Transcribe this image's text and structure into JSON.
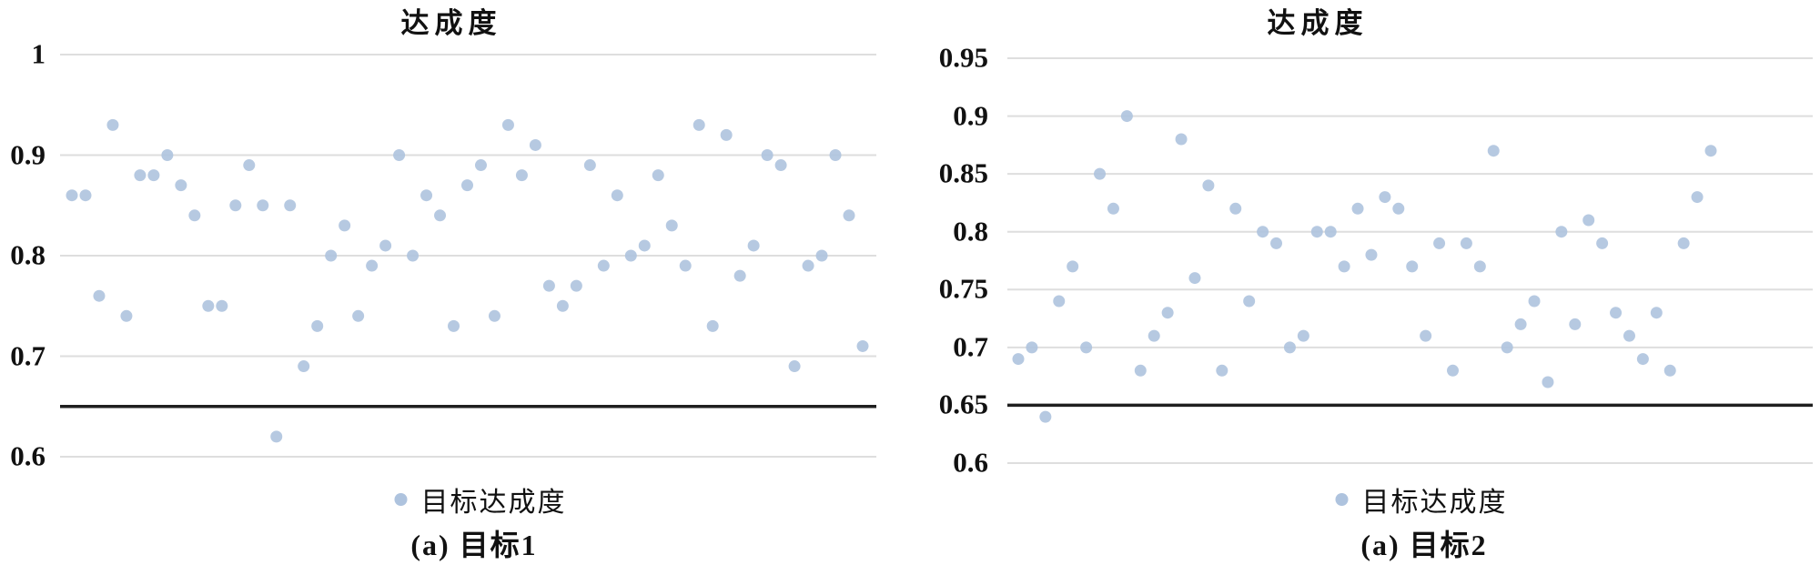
{
  "chart_data": [
    {
      "type": "scatter",
      "title": "达成度",
      "legend_label": "目标达成度",
      "legend_position": "bottom",
      "caption": "(a) 目标1",
      "xlabel": "",
      "ylabel": "",
      "x_axis_labels_shown": false,
      "grid": true,
      "ylim": [
        0.6,
        1.0
      ],
      "yticks": [
        {
          "label": "1",
          "value": 1.0
        },
        {
          "label": "0.9",
          "value": 0.9
        },
        {
          "label": "0.8",
          "value": 0.8
        },
        {
          "label": "0.7",
          "value": 0.7
        },
        {
          "label": "0.6",
          "value": 0.6
        }
      ],
      "threshold_line": 0.65,
      "point_color": "#aec3de",
      "grid_color": "#dedede",
      "threshold_color": "#1f1f1f",
      "values": [
        0.86,
        0.86,
        0.76,
        0.93,
        0.74,
        0.88,
        0.88,
        0.9,
        0.87,
        0.84,
        0.75,
        0.75,
        0.85,
        0.89,
        0.85,
        0.62,
        0.85,
        0.69,
        0.73,
        0.8,
        0.83,
        0.74,
        0.79,
        0.81,
        0.9,
        0.8,
        0.86,
        0.84,
        0.73,
        0.87,
        0.89,
        0.74,
        0.93,
        0.88,
        0.91,
        0.77,
        0.75,
        0.77,
        0.89,
        0.79,
        0.86,
        0.8,
        0.81,
        0.88,
        0.83,
        0.79,
        0.93,
        0.73,
        0.92,
        0.78,
        0.81,
        0.9,
        0.89,
        0.69,
        0.79,
        0.8,
        0.9,
        0.84,
        0.71
      ]
    },
    {
      "type": "scatter",
      "title": "达成度",
      "legend_label": "目标达成度",
      "legend_position": "bottom",
      "caption": "(a) 目标2",
      "xlabel": "",
      "ylabel": "",
      "x_axis_labels_shown": false,
      "grid": true,
      "ylim": [
        0.6,
        0.95
      ],
      "yticks": [
        {
          "label": "0.95",
          "value": 0.95
        },
        {
          "label": "0.9",
          "value": 0.9
        },
        {
          "label": "0.85",
          "value": 0.85
        },
        {
          "label": "0.8",
          "value": 0.8
        },
        {
          "label": "0.75",
          "value": 0.75
        },
        {
          "label": "0.7",
          "value": 0.7
        },
        {
          "label": "0.65",
          "value": 0.65
        },
        {
          "label": "0.6",
          "value": 0.6
        }
      ],
      "threshold_line": 0.65,
      "point_color": "#aec3de",
      "grid_color": "#dedede",
      "threshold_color": "#1f1f1f",
      "values": [
        0.69,
        0.7,
        0.64,
        0.74,
        0.77,
        0.7,
        0.85,
        0.82,
        0.9,
        0.68,
        0.71,
        0.73,
        0.88,
        0.76,
        0.84,
        0.68,
        0.82,
        0.74,
        0.8,
        0.79,
        0.7,
        0.71,
        0.8,
        0.8,
        0.77,
        0.82,
        0.78,
        0.83,
        0.82,
        0.77,
        0.71,
        0.79,
        0.68,
        0.79,
        0.77,
        0.87,
        0.7,
        0.72,
        0.74,
        0.67,
        0.8,
        0.72,
        0.81,
        0.79,
        0.73,
        0.71,
        0.69,
        0.73,
        0.68,
        0.79,
        0.83,
        0.87
      ]
    }
  ]
}
